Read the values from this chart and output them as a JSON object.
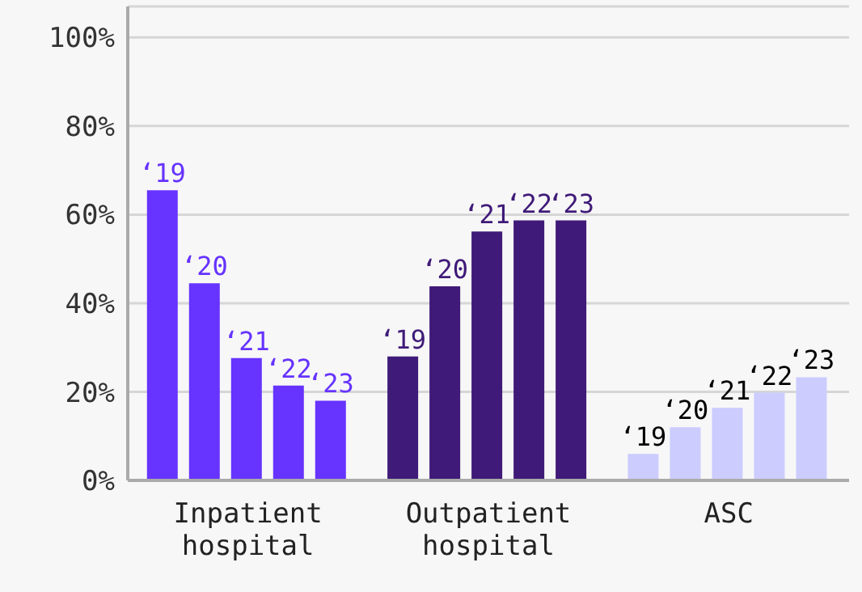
{
  "chart_data": {
    "type": "bar",
    "categories": [
      "Inpatient hospital",
      "Outpatient hospital",
      "ASC"
    ],
    "series": [
      {
        "name": "‘19",
        "colors": [
          "#6633ff",
          "#3f1a78",
          "#ccccff"
        ],
        "values": [
          65.5,
          28,
          6
        ]
      },
      {
        "name": "‘20",
        "colors": [
          "#6633ff",
          "#3f1a78",
          "#ccccff"
        ],
        "values": [
          44.5,
          43.8,
          12
        ]
      },
      {
        "name": "‘21",
        "colors": [
          "#6633ff",
          "#3f1a78",
          "#ccccff"
        ],
        "values": [
          27.6,
          56.2,
          16.4
        ]
      },
      {
        "name": "‘22",
        "colors": [
          "#6633ff",
          "#3f1a78",
          "#ccccff"
        ],
        "values": [
          21.4,
          58.7,
          19.8
        ]
      },
      {
        "name": "‘23",
        "colors": [
          "#6633ff",
          "#3f1a78",
          "#ccccff"
        ],
        "values": [
          18,
          58.7,
          23.3
        ]
      }
    ],
    "ylim": [
      0,
      107
    ],
    "yticks": [
      {
        "value": 0,
        "label": "0%"
      },
      {
        "value": 20,
        "label": "20%"
      },
      {
        "value": 40,
        "label": "40%"
      },
      {
        "value": 60,
        "label": "60%"
      },
      {
        "value": 80,
        "label": "80%"
      },
      {
        "value": 100,
        "label": "100%"
      }
    ],
    "grid": "y",
    "legend": false
  }
}
